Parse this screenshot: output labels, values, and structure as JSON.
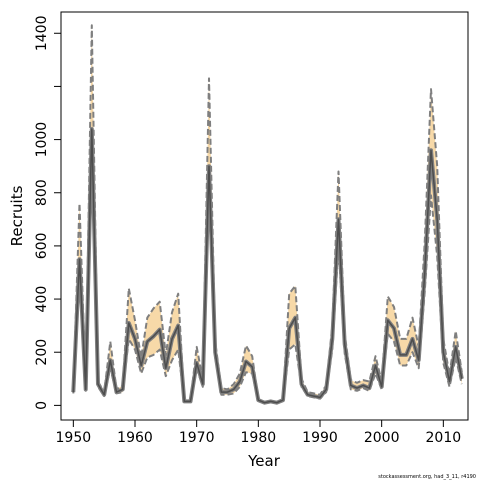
{
  "chart_data": {
    "type": "line",
    "xlabel": "Year",
    "ylabel": "Recruits",
    "xlim": [
      1948.0,
      2014.0
    ],
    "ylim": [
      -55,
      1480
    ],
    "x_ticks": [
      1950,
      1960,
      1970,
      1980,
      1990,
      2000,
      2010
    ],
    "y_ticks": [
      0,
      200,
      400,
      600,
      800,
      1000,
      1400
    ],
    "y_tick_marks": [
      0,
      200,
      400,
      600,
      800,
      1000,
      1200,
      1400
    ],
    "credit": "stockassessment.org, had_3_11, r4190",
    "colors": {
      "band": "#f7d9a8",
      "bound_line": "#7f7f7f",
      "estimate_line": "#4d4d4d"
    },
    "series": [
      {
        "x": [
          1950,
          1951,
          1952,
          1953,
          1954,
          1955,
          1956,
          1957,
          1958,
          1959,
          1960,
          1961,
          1962,
          1963,
          1964,
          1965,
          1966,
          1967,
          1968,
          1969,
          1970,
          1971,
          1972,
          1973,
          1974,
          1975,
          1976,
          1977,
          1978,
          1979,
          1980,
          1981,
          1982,
          1983,
          1984,
          1985,
          1986,
          1987,
          1988,
          1989,
          1990,
          1991,
          1992,
          1993,
          1994,
          1995,
          1996,
          1997,
          1998,
          1999,
          2000,
          2001,
          2002,
          2003,
          2004,
          2005,
          2006,
          2007,
          2008,
          2009,
          2010,
          2011,
          2012,
          2013
        ],
        "estimate": [
          50,
          550,
          60,
          1040,
          80,
          40,
          170,
          50,
          60,
          310,
          250,
          150,
          240,
          260,
          285,
          140,
          250,
          300,
          15,
          15,
          160,
          80,
          900,
          200,
          50,
          50,
          60,
          90,
          165,
          145,
          20,
          10,
          15,
          10,
          20,
          290,
          330,
          80,
          40,
          35,
          30,
          60,
          250,
          700,
          230,
          75,
          65,
          75,
          65,
          150,
          70,
          320,
          290,
          190,
          190,
          250,
          170,
          500,
          960,
          700,
          200,
          90,
          220,
          100
        ],
        "lower": [
          45,
          480,
          55,
          1000,
          70,
          35,
          140,
          45,
          50,
          250,
          210,
          120,
          180,
          190,
          210,
          110,
          170,
          210,
          14,
          14,
          140,
          70,
          800,
          180,
          40,
          40,
          45,
          70,
          125,
          120,
          17,
          8,
          12,
          8,
          16,
          210,
          230,
          70,
          35,
          30,
          25,
          50,
          210,
          600,
          195,
          60,
          55,
          65,
          55,
          120,
          60,
          270,
          240,
          150,
          150,
          200,
          140,
          430,
          790,
          560,
          160,
          70,
          180,
          80
        ],
        "upper": [
          55,
          760,
          70,
          1430,
          90,
          50,
          240,
          60,
          75,
          440,
          320,
          180,
          330,
          365,
          390,
          190,
          350,
          420,
          18,
          18,
          220,
          95,
          1230,
          240,
          65,
          60,
          80,
          120,
          225,
          185,
          24,
          12,
          18,
          12,
          25,
          420,
          450,
          100,
          50,
          45,
          40,
          75,
          300,
          880,
          270,
          95,
          85,
          95,
          90,
          185,
          90,
          410,
          370,
          250,
          250,
          330,
          220,
          620,
          1190,
          900,
          250,
          115,
          280,
          125
        ]
      }
    ]
  }
}
